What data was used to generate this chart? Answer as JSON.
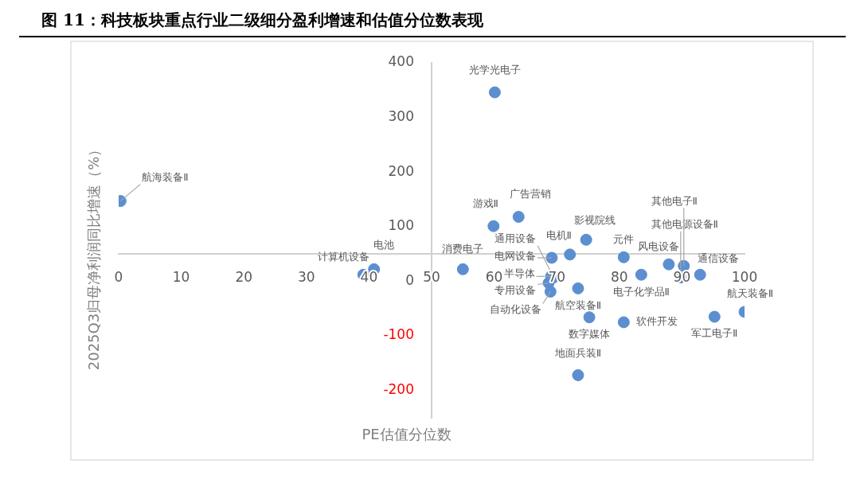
{
  "chart_data": {
    "type": "scatter",
    "title": "图 11：科技板块重点行业二级细分盈利增速和估值分位数表现",
    "xlabel": "PE估值分位数",
    "ylabel": "2025Q3归母净利润同比增速（%）",
    "x": [
      0.3,
      39.1,
      40.8,
      55.0,
      59.9,
      60.1,
      63.9,
      68.7,
      69.0,
      69.1,
      69.2,
      69.5,
      72.1,
      73.4,
      73.4,
      74.7,
      75.2,
      80.7,
      80.7,
      83.5,
      87.9,
      89.8,
      90.3,
      92.9,
      95.2,
      100
    ],
    "values": [
      147,
      12,
      22,
      22,
      101,
      346,
      118,
      -3,
      -19,
      9,
      43,
      7,
      49,
      -172,
      -13,
      76,
      -66,
      44,
      -75,
      12,
      31,
      7,
      28,
      12,
      -65,
      -56
    ],
    "value_labels": [
      "航海装备Ⅱ",
      "计算机设备",
      "电池",
      "消费电子",
      "游戏Ⅱ",
      "光学光电子",
      "广告营销",
      "专用设备",
      "自动化设备",
      "半导体",
      "电网设备",
      "通用设备",
      "电机Ⅱ",
      "地面兵装Ⅱ",
      "航空装备Ⅱ",
      "影视院线",
      "数字媒体",
      "元件",
      "软件开发",
      "电子化学品Ⅱ",
      "风电设备",
      "其他电源设备Ⅱ",
      "其他电子Ⅱ",
      "通信设备",
      "军工电子Ⅱ",
      "航天装备Ⅱ"
    ],
    "color": "#5b8fd0",
    "xlim": [
      0,
      100
    ],
    "xticks": [
      0,
      10,
      20,
      30,
      40,
      50,
      60,
      70,
      80,
      90,
      100
    ],
    "ylim": [
      -250,
      400
    ],
    "yticks": [
      -200,
      -100,
      0,
      100,
      200,
      300,
      400
    ],
    "grid": false,
    "legend": false,
    "marker": "circle"
  }
}
